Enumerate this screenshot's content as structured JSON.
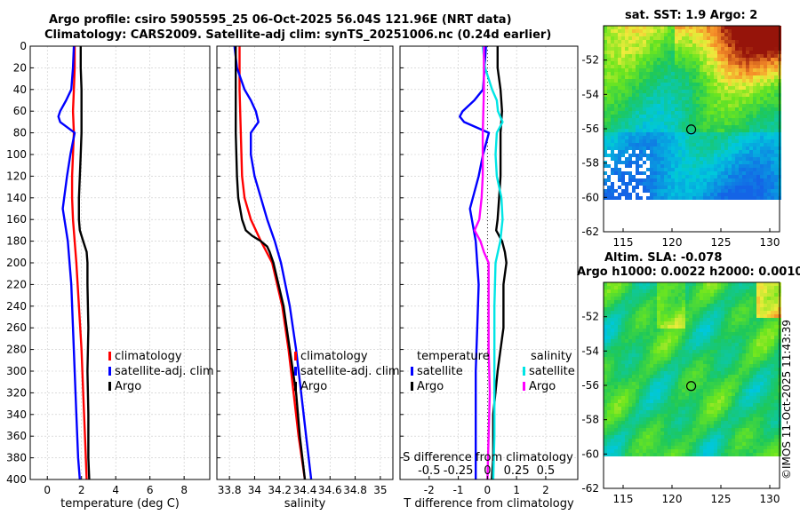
{
  "titles": {
    "line1": "Argo profile: csiro 5905595_25 06-Oct-2025 56.04S 121.96E (NRT data)",
    "line2": "Climatology: CARS2009. Satellite-adj clim: synTS_20251006.nc (0.24d earlier)"
  },
  "credit": "©IMOS 11-Oct-2025 11:43:39",
  "colors": {
    "climatology": "#ff0000",
    "satellite": "#0000ff",
    "argo": "#000000",
    "satellite_salinity": "#00e5e5",
    "argo_salinity": "#ff00ff"
  },
  "chart_data": [
    {
      "id": "temperature",
      "type": "line",
      "xlabel": "temperature (deg C)",
      "ylabel": "",
      "xlim": [
        -1,
        9.5
      ],
      "ylim": [
        400,
        0
      ],
      "xticks": [
        0,
        2,
        4,
        6,
        8
      ],
      "xtick_labels": [
        "0",
        "2",
        "4",
        "6",
        "8"
      ],
      "yticks": [
        0,
        20,
        40,
        60,
        80,
        100,
        120,
        140,
        160,
        180,
        200,
        220,
        240,
        260,
        280,
        300,
        320,
        340,
        360,
        380,
        400
      ],
      "ytick_labels": [
        "0",
        "20",
        "40",
        "60",
        "80",
        "100",
        "120",
        "140",
        "160",
        "180",
        "200",
        "220",
        "240",
        "260",
        "280",
        "300",
        "320",
        "340",
        "360",
        "380",
        "400"
      ],
      "grid": true,
      "legend": {
        "position": "middle-right",
        "entries": [
          "climatology",
          "satellite-adj. clim",
          "Argo"
        ]
      },
      "series": [
        {
          "name": "climatology",
          "color": "#ff0000",
          "depth": [
            0,
            20,
            40,
            60,
            80,
            100,
            120,
            140,
            160,
            180,
            200,
            240,
            280,
            320,
            360,
            400
          ],
          "values": [
            1.6,
            1.6,
            1.55,
            1.5,
            1.55,
            1.5,
            1.45,
            1.45,
            1.5,
            1.6,
            1.7,
            1.85,
            2.0,
            2.1,
            2.2,
            2.3
          ]
        },
        {
          "name": "satellite-adj. clim",
          "color": "#0000ff",
          "depth": [
            0,
            20,
            40,
            50,
            60,
            65,
            70,
            80,
            100,
            120,
            150,
            180,
            220,
            260,
            300,
            340,
            380,
            400
          ],
          "values": [
            1.55,
            1.5,
            1.4,
            1.1,
            0.75,
            0.65,
            0.75,
            1.6,
            1.35,
            1.15,
            0.9,
            1.2,
            1.4,
            1.5,
            1.6,
            1.7,
            1.8,
            1.9
          ]
        },
        {
          "name": "Argo",
          "color": "#000000",
          "depth": [
            0,
            20,
            40,
            60,
            80,
            100,
            120,
            140,
            160,
            170,
            180,
            190,
            200,
            220,
            260,
            300,
            340,
            380,
            400
          ],
          "values": [
            1.95,
            1.95,
            2.0,
            2.0,
            2.0,
            1.95,
            1.9,
            1.85,
            1.85,
            1.9,
            2.1,
            2.3,
            2.35,
            2.35,
            2.4,
            2.35,
            2.4,
            2.4,
            2.45
          ]
        }
      ]
    },
    {
      "id": "salinity",
      "type": "line",
      "xlabel": "salinity",
      "xlim": [
        33.7,
        35.1
      ],
      "ylim": [
        400,
        0
      ],
      "xticks": [
        33.8,
        34.0,
        34.2,
        34.4,
        34.6,
        34.8,
        35.0
      ],
      "xtick_labels": [
        "33.8",
        "34",
        "34.2",
        "34.4",
        "34.6",
        "34.8",
        "35"
      ],
      "grid": true,
      "legend": {
        "position": "middle-right",
        "entries": [
          "climatology",
          "satellite-adj. clim",
          "Argo"
        ]
      },
      "series": [
        {
          "name": "climatology",
          "color": "#ff0000",
          "depth": [
            0,
            40,
            80,
            120,
            140,
            160,
            180,
            200,
            240,
            280,
            320,
            360,
            400
          ],
          "values": [
            33.88,
            33.88,
            33.89,
            33.9,
            33.92,
            33.97,
            34.05,
            34.14,
            34.22,
            34.27,
            34.31,
            34.35,
            34.4
          ]
        },
        {
          "name": "satellite-adj. clim",
          "color": "#0000ff",
          "depth": [
            0,
            20,
            40,
            50,
            60,
            70,
            80,
            100,
            120,
            140,
            160,
            180,
            200,
            240,
            280,
            320,
            360,
            400
          ],
          "values": [
            33.84,
            33.86,
            33.92,
            33.97,
            34.01,
            34.03,
            33.97,
            33.97,
            34.0,
            34.05,
            34.1,
            34.16,
            34.21,
            34.28,
            34.33,
            34.37,
            34.41,
            34.45
          ]
        },
        {
          "name": "Argo",
          "color": "#000000",
          "depth": [
            0,
            40,
            80,
            120,
            140,
            160,
            170,
            175,
            180,
            185,
            190,
            200,
            240,
            280,
            320,
            360,
            400
          ],
          "values": [
            33.85,
            33.85,
            33.85,
            33.86,
            33.87,
            33.9,
            33.93,
            33.98,
            34.05,
            34.1,
            34.12,
            34.15,
            34.23,
            34.28,
            34.33,
            34.36,
            34.4
          ]
        }
      ]
    },
    {
      "id": "difference",
      "type": "line",
      "xlabel": "T difference from climatology",
      "xlim": [
        -3,
        3.1
      ],
      "ylim": [
        400,
        0
      ],
      "xticks": [
        -2,
        -1,
        0,
        1,
        2
      ],
      "xtick_labels": [
        "-2",
        "-1",
        "0",
        "1",
        "2"
      ],
      "top_axis_label": "S difference from climatology",
      "top_ticks": [
        -0.5,
        -0.25,
        0,
        0.25,
        0.5
      ],
      "top_tick_labels": [
        "-0.5",
        "-0.25",
        "0",
        "0.25",
        "0.5"
      ],
      "grid": true,
      "legend": {
        "position": "middle",
        "temperature_title": "temperature",
        "salinity_title": "salinity",
        "temperature_entries": [
          "satellite",
          "Argo"
        ],
        "salinity_entries": [
          "satellite",
          "Argo"
        ]
      },
      "series": [
        {
          "name": "T satellite",
          "color": "#0000ff",
          "depth": [
            0,
            20,
            40,
            50,
            60,
            65,
            70,
            80,
            100,
            120,
            150,
            180,
            220,
            260,
            300,
            340,
            380,
            400
          ],
          "values": [
            -0.05,
            -0.1,
            -0.15,
            -0.45,
            -0.85,
            -0.95,
            -0.8,
            0.05,
            -0.15,
            -0.3,
            -0.6,
            -0.4,
            -0.3,
            -0.35,
            -0.4,
            -0.4,
            -0.4,
            -0.4
          ]
        },
        {
          "name": "T Argo",
          "color": "#000000",
          "depth": [
            0,
            20,
            40,
            60,
            80,
            100,
            120,
            140,
            160,
            170,
            180,
            190,
            200,
            220,
            260,
            300,
            340,
            380,
            400
          ],
          "values": [
            0.35,
            0.35,
            0.45,
            0.5,
            0.45,
            0.45,
            0.45,
            0.4,
            0.35,
            0.3,
            0.5,
            0.6,
            0.65,
            0.55,
            0.55,
            0.35,
            0.2,
            0.2,
            0.15
          ]
        },
        {
          "name": "S satellite",
          "color": "#00e5e5",
          "depth": [
            0,
            20,
            40,
            50,
            60,
            70,
            80,
            100,
            120,
            140,
            160,
            180,
            200,
            240,
            280,
            320,
            360,
            400
          ],
          "values": [
            -0.04,
            -0.02,
            0.04,
            0.08,
            0.09,
            0.13,
            0.08,
            0.07,
            0.08,
            0.12,
            0.13,
            0.11,
            0.07,
            0.06,
            0.06,
            0.06,
            0.06,
            0.05
          ]
        },
        {
          "name": "S Argo",
          "color": "#ff00ff",
          "depth": [
            0,
            40,
            80,
            120,
            140,
            160,
            170,
            180,
            190,
            200,
            240,
            280,
            320,
            360,
            400
          ],
          "values": [
            -0.03,
            -0.03,
            -0.04,
            -0.04,
            -0.05,
            -0.07,
            -0.11,
            -0.06,
            -0.03,
            0.01,
            0.01,
            0.01,
            0.02,
            0.01,
            0.0
          ]
        }
      ]
    },
    {
      "id": "sst-map",
      "type": "heatmap",
      "title": "sat. SST: 1.9 Argo: 2",
      "xlim": [
        113,
        131
      ],
      "ylim": [
        -62,
        -50
      ],
      "xticks": [
        115,
        120,
        125,
        130
      ],
      "xtick_labels": [
        "115",
        "120",
        "125",
        "130"
      ],
      "yticks": [
        -62,
        -60,
        -58,
        -56,
        -54,
        -52
      ],
      "ytick_labels": [
        "-62",
        "-60",
        "-58",
        "-56",
        "-54",
        "-52"
      ],
      "marker": {
        "lon": 121.96,
        "lat": -56.04
      }
    },
    {
      "id": "sla-map",
      "type": "heatmap",
      "title": "Altim. SLA: -0.078",
      "subtitle": "Argo h1000: 0.0022 h2000: 0.0010",
      "xlim": [
        113,
        131
      ],
      "ylim": [
        -62,
        -50
      ],
      "xticks": [
        115,
        120,
        125,
        130
      ],
      "xtick_labels": [
        "115",
        "120",
        "125",
        "130"
      ],
      "yticks": [
        -62,
        -60,
        -58,
        -56,
        -54,
        -52
      ],
      "ytick_labels": [
        "-62",
        "-60",
        "-58",
        "-56",
        "-54",
        "-52"
      ],
      "marker": {
        "lon": 121.96,
        "lat": -56.04
      }
    }
  ]
}
